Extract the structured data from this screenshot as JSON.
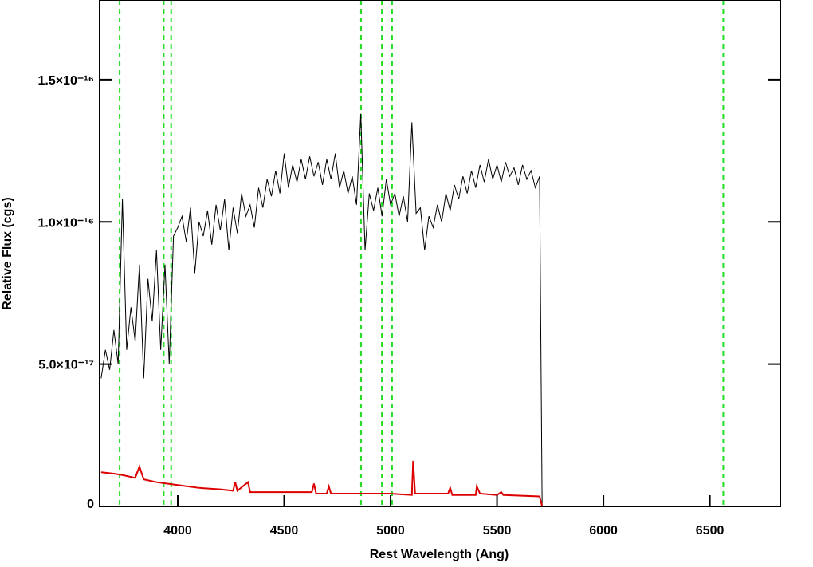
{
  "chart_data": {
    "type": "line",
    "x_label": "Rest Wavelength (Ang)",
    "y_label": "Relative Flux (cgs)",
    "xlim": [
      3633,
      6831
    ],
    "ylim": [
      0,
      1.78e-16
    ],
    "xticks": [
      4000,
      4500,
      5000,
      5500,
      6000,
      6500
    ],
    "yticks": [
      0,
      {
        "value": 5e-17,
        "label": "5.0×10⁻¹⁷"
      },
      {
        "value": 1e-16,
        "label": "1.0×10⁻¹⁶"
      },
      {
        "value": 1.5e-16,
        "label": "1.5×10⁻¹⁶"
      }
    ],
    "vlines": [
      3727,
      3934,
      3969,
      4861,
      4959,
      5007,
      6563
    ],
    "vline_color": "#22dd22",
    "series": [
      {
        "color": "#000000",
        "x": [
          3640,
          3660,
          3680,
          3700,
          3720,
          3740,
          3760,
          3780,
          3800,
          3820,
          3840,
          3860,
          3880,
          3900,
          3920,
          3940,
          3960,
          3980,
          4000,
          4020,
          4040,
          4060,
          4080,
          4100,
          4120,
          4140,
          4160,
          4180,
          4200,
          4220,
          4240,
          4260,
          4280,
          4300,
          4320,
          4340,
          4360,
          4380,
          4400,
          4420,
          4440,
          4460,
          4480,
          4500,
          4520,
          4540,
          4560,
          4580,
          4600,
          4620,
          4640,
          4660,
          4680,
          4700,
          4720,
          4740,
          4760,
          4780,
          4800,
          4820,
          4840,
          4860,
          4880,
          4900,
          4920,
          4940,
          4960,
          4980,
          5000,
          5020,
          5040,
          5060,
          5080,
          5100,
          5120,
          5140,
          5160,
          5180,
          5200,
          5220,
          5240,
          5260,
          5280,
          5300,
          5320,
          5340,
          5360,
          5380,
          5400,
          5420,
          5440,
          5460,
          5480,
          5500,
          5520,
          5540,
          5560,
          5580,
          5600,
          5620,
          5640,
          5660,
          5680,
          5700,
          5712
        ],
        "values": [
          4.5e-17,
          5.5e-17,
          4.8e-17,
          6.2e-17,
          5e-17,
          1.08e-16,
          5.5e-17,
          7e-17,
          5.8e-17,
          8.5e-17,
          4.5e-17,
          8e-17,
          6.5e-17,
          9e-17,
          5.5e-17,
          8.5e-17,
          5e-17,
          9.5e-17,
          9.8e-17,
          1.02e-16,
          9.3e-17,
          1.05e-16,
          8.2e-17,
          1e-16,
          9.5e-17,
          1.04e-16,
          9.2e-17,
          1.06e-16,
          9.7e-17,
          1.08e-16,
          9e-17,
          1.05e-16,
          9.6e-17,
          1.1e-16,
          1.02e-16,
          1.06e-16,
          9.8e-17,
          1.12e-16,
          1.05e-16,
          1.15e-16,
          1.09e-16,
          1.18e-16,
          1.1e-16,
          1.24e-16,
          1.12e-16,
          1.2e-16,
          1.14e-16,
          1.22e-16,
          1.15e-16,
          1.23e-16,
          1.16e-16,
          1.21e-16,
          1.13e-16,
          1.22e-16,
          1.15e-16,
          1.24e-16,
          1.12e-16,
          1.18e-16,
          1.1e-16,
          1.16e-16,
          1.06e-16,
          1.38e-16,
          9e-17,
          1.1e-16,
          1.04e-16,
          1.12e-16,
          1.02e-16,
          1.15e-16,
          1.06e-16,
          1.1e-16,
          1.02e-16,
          1.09e-16,
          1e-16,
          1.35e-16,
          1.03e-16,
          1.05e-16,
          9e-17,
          1.02e-16,
          9.8e-17,
          1.06e-16,
          1e-16,
          1.1e-16,
          1.04e-16,
          1.13e-16,
          1.08e-16,
          1.16e-16,
          1.1e-16,
          1.18e-16,
          1.12e-16,
          1.2e-16,
          1.14e-16,
          1.22e-16,
          1.15e-16,
          1.2e-16,
          1.14e-16,
          1.21e-16,
          1.16e-16,
          1.19e-16,
          1.13e-16,
          1.2e-16,
          1.15e-16,
          1.18e-16,
          1.12e-16,
          1.16e-16,
          0
        ]
      },
      {
        "color": "#dd0000",
        "x": [
          3640,
          3700,
          3740,
          3800,
          3820,
          3840,
          3900,
          4000,
          4100,
          4200,
          4260,
          4270,
          4280,
          4330,
          4340,
          4500,
          4630,
          4640,
          4650,
          4700,
          4710,
          4720,
          4860,
          5000,
          5100,
          5106,
          5115,
          5200,
          5270,
          5280,
          5290,
          5400,
          5405,
          5420,
          5500,
          5520,
          5530,
          5700,
          5712,
          6831
        ],
        "values": [
          1.2e-17,
          1.15e-17,
          1.1e-17,
          1e-17,
          1.4e-17,
          9.5e-18,
          8.5e-18,
          7.5e-18,
          6.5e-18,
          6e-18,
          5.5e-18,
          8.5e-18,
          5.5e-18,
          8.5e-18,
          5e-18,
          5e-18,
          5e-18,
          8e-18,
          4.5e-18,
          4.5e-18,
          7e-18,
          4.5e-18,
          4.5e-18,
          4.5e-18,
          4e-18,
          1.6e-17,
          4.5e-18,
          4.5e-18,
          4.5e-18,
          6.5e-18,
          4e-18,
          4e-18,
          7e-18,
          4.5e-18,
          4e-18,
          5e-18,
          4e-18,
          3.5e-18,
          0,
          0
        ]
      }
    ]
  }
}
